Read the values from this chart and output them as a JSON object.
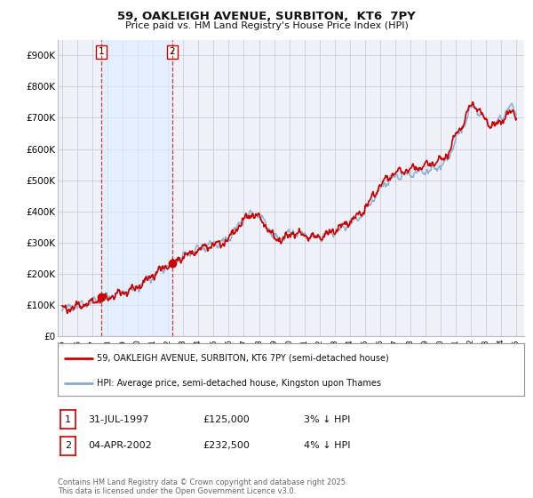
{
  "title1": "59, OAKLEIGH AVENUE, SURBITON,  KT6  7PY",
  "title2": "Price paid vs. HM Land Registry's House Price Index (HPI)",
  "legend_line1": "59, OAKLEIGH AVENUE, SURBITON, KT6 7PY (semi-detached house)",
  "legend_line2": "HPI: Average price, semi-detached house, Kingston upon Thames",
  "transaction1_date": "31-JUL-1997",
  "transaction1_price": "£125,000",
  "transaction1_hpi": "3% ↓ HPI",
  "transaction2_date": "04-APR-2002",
  "transaction2_price": "£232,500",
  "transaction2_hpi": "4% ↓ HPI",
  "sale1_year": 1997.58,
  "sale1_price": 125000,
  "sale2_year": 2002.27,
  "sale2_price": 232500,
  "line_color_property": "#cc0000",
  "line_color_hpi": "#88aacc",
  "fill_color_between_sales": "#ddeeff",
  "background_color": "#eef2f8",
  "grid_color": "#d8dde8",
  "copyright_text": "Contains HM Land Registry data © Crown copyright and database right 2025.\nThis data is licensed under the Open Government Licence v3.0.",
  "ylim": [
    0,
    950000
  ],
  "yticks": [
    0,
    100000,
    200000,
    300000,
    400000,
    500000,
    600000,
    700000,
    800000,
    900000
  ],
  "xlim_start": 1994.7,
  "xlim_end": 2025.5
}
